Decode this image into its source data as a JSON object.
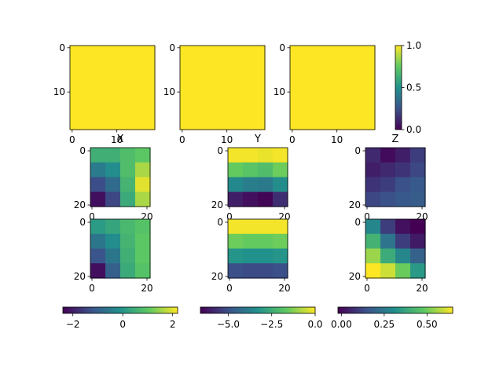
{
  "chart_data": [
    {
      "type": "heatmap",
      "panel": "top-1",
      "values": [
        [
          1.0
        ]
      ],
      "x_ticks": [
        "0",
        "10"
      ],
      "y_ticks": [
        "0",
        "10"
      ],
      "extent": [
        0,
        19
      ],
      "colormap": "viridis"
    },
    {
      "type": "heatmap",
      "panel": "top-2",
      "values": [
        [
          1.0
        ]
      ],
      "x_ticks": [
        "0",
        "10"
      ],
      "y_ticks": [
        "0",
        "10"
      ],
      "extent": [
        0,
        19
      ],
      "colormap": "viridis"
    },
    {
      "type": "heatmap",
      "panel": "top-3",
      "values": [
        [
          1.0
        ]
      ],
      "x_ticks": [
        "0",
        "10"
      ],
      "y_ticks": [
        "0",
        "10"
      ],
      "extent": [
        0,
        19
      ],
      "colormap": "viridis",
      "colorbar": {
        "orientation": "vertical",
        "vmin": 0.0,
        "vmax": 1.0,
        "ticks": [
          "0.0",
          "0.5",
          "1.0"
        ]
      }
    },
    {
      "type": "heatmap",
      "panel": "middle-1",
      "title": "X",
      "values": [
        [
          0.5,
          0.5,
          0.8,
          1.0
        ],
        [
          -0.5,
          -0.2,
          0.8,
          1.6
        ],
        [
          -1.3,
          -0.8,
          0.6,
          2.0
        ],
        [
          -2.2,
          -1.4,
          0.4,
          1.6
        ]
      ],
      "vmin": -2.4,
      "vmax": 2.2,
      "x_ticks": [
        "0",
        "20"
      ],
      "y_ticks": [
        "0",
        "20"
      ],
      "colormap": "viridis"
    },
    {
      "type": "heatmap",
      "panel": "middle-2",
      "title": "Y",
      "values": [
        [
          -0.1,
          -0.1,
          -0.2,
          -0.1
        ],
        [
          -1.6,
          -1.8,
          -2.0,
          -1.5
        ],
        [
          -3.5,
          -3.8,
          -3.9,
          -3.4
        ],
        [
          -6.0,
          -6.3,
          -6.5,
          -5.7
        ]
      ],
      "vmin": -6.6,
      "vmax": 0.0,
      "x_ticks": [
        "0",
        "20"
      ],
      "y_ticks": [
        "0",
        "20"
      ],
      "colormap": "viridis"
    },
    {
      "type": "heatmap",
      "panel": "middle-3",
      "title": "Z",
      "values": [
        [
          0.08,
          0.02,
          0.06,
          0.12
        ],
        [
          0.06,
          0.08,
          0.1,
          0.14
        ],
        [
          0.1,
          0.12,
          0.16,
          0.18
        ],
        [
          0.14,
          0.16,
          0.18,
          0.19
        ]
      ],
      "vmin": 0.0,
      "vmax": 0.65,
      "x_ticks": [
        "0",
        "20"
      ],
      "y_ticks": [
        "0",
        "20"
      ],
      "colormap": "viridis"
    },
    {
      "type": "heatmap",
      "panel": "bottom-1",
      "values": [
        [
          0.1,
          0.3,
          0.7,
          0.9
        ],
        [
          -0.6,
          -0.2,
          0.6,
          1.0
        ],
        [
          -1.2,
          -0.6,
          0.5,
          1.0
        ],
        [
          -2.2,
          -1.0,
          0.4,
          0.9
        ]
      ],
      "vmin": -2.4,
      "vmax": 2.2,
      "x_ticks": [
        "0",
        "20"
      ],
      "y_ticks": [
        "0",
        "20"
      ],
      "colormap": "viridis"
    },
    {
      "type": "heatmap",
      "panel": "bottom-2",
      "values": [
        [
          -0.1,
          -0.1,
          -0.1,
          -0.1
        ],
        [
          -1.5,
          -1.6,
          -1.6,
          -1.5
        ],
        [
          -3.2,
          -3.3,
          -3.3,
          -3.2
        ],
        [
          -5.0,
          -5.1,
          -5.1,
          -5.0
        ]
      ],
      "vmin": -6.6,
      "vmax": 0.0,
      "x_ticks": [
        "0",
        "20"
      ],
      "y_ticks": [
        "0",
        "20"
      ],
      "colormap": "viridis"
    },
    {
      "type": "heatmap",
      "panel": "bottom-3",
      "values": [
        [
          0.3,
          0.12,
          0.03,
          0.0
        ],
        [
          0.42,
          0.25,
          0.12,
          0.05
        ],
        [
          0.55,
          0.4,
          0.3,
          0.2
        ],
        [
          0.65,
          0.6,
          0.5,
          0.35
        ]
      ],
      "vmin": 0.0,
      "vmax": 0.65,
      "x_ticks": [
        "0",
        "20"
      ],
      "y_ticks": [
        "0",
        "20"
      ],
      "colormap": "viridis"
    },
    {
      "type": "colorbar",
      "orientation": "horizontal",
      "vmin": -2.4,
      "vmax": 2.2,
      "ticks": [
        {
          "v": -2,
          "label": "−2"
        },
        {
          "v": 0,
          "label": "0"
        },
        {
          "v": 2,
          "label": "2"
        }
      ],
      "colormap": "viridis"
    },
    {
      "type": "colorbar",
      "orientation": "horizontal",
      "vmin": -6.6,
      "vmax": 0.0,
      "ticks": [
        {
          "v": -5,
          "label": "−5.0"
        },
        {
          "v": -2.5,
          "label": "−2.5"
        },
        {
          "v": 0,
          "label": "0.0"
        }
      ],
      "colormap": "viridis"
    },
    {
      "type": "colorbar",
      "orientation": "horizontal",
      "vmin": -0.02,
      "vmax": 0.65,
      "ticks": [
        {
          "v": 0,
          "label": "0.00"
        },
        {
          "v": 0.25,
          "label": "0.25"
        },
        {
          "v": 0.5,
          "label": "0.50"
        }
      ],
      "colormap": "viridis"
    }
  ]
}
